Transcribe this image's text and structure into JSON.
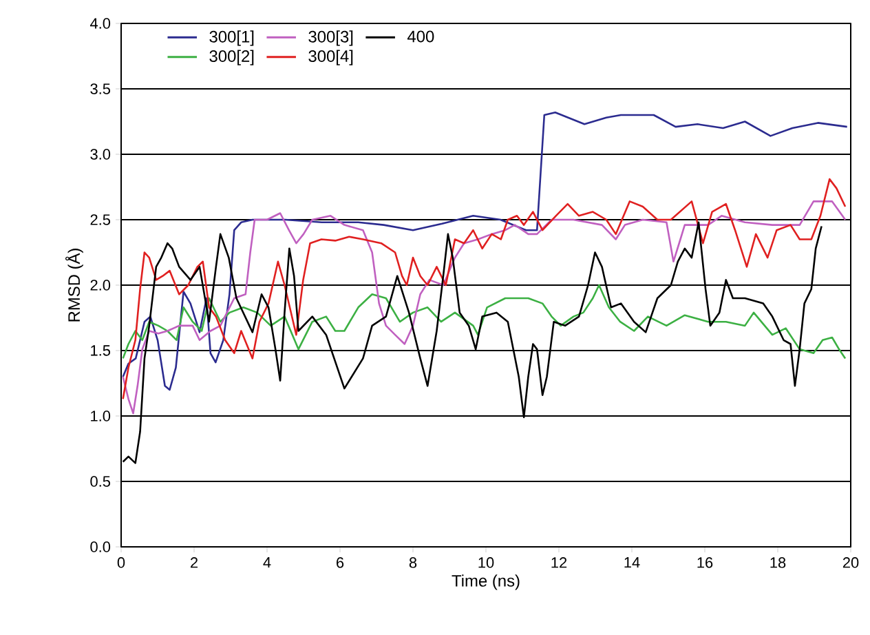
{
  "chart_data": {
    "type": "line",
    "xlabel": "Time (ns)",
    "ylabel": "RMSD (Å)",
    "xlim": [
      0,
      20
    ],
    "ylim": [
      0,
      4
    ],
    "xticks": [
      0,
      2,
      4,
      6,
      8,
      10,
      12,
      14,
      16,
      18,
      20
    ],
    "yticks": [
      {
        "value": 0,
        "label": "0.0"
      },
      {
        "value": 0.5,
        "label": "0.5"
      },
      {
        "value": 1,
        "label": "1.0"
      },
      {
        "value": 1.5,
        "label": "1.5"
      },
      {
        "value": 2,
        "label": "2.0"
      },
      {
        "value": 2.5,
        "label": "2.5"
      },
      {
        "value": 3,
        "label": "3.0"
      },
      {
        "value": 3.5,
        "label": "3.5"
      },
      {
        "value": 4,
        "label": "4.0"
      }
    ],
    "grid": "y",
    "legend": "top left",
    "marker": "none",
    "line_style": "solid",
    "series": [
      {
        "name": "300[1]",
        "color": "#2b2b8f",
        "x": [
          0.05,
          0.2,
          0.4,
          0.64,
          0.8,
          1.0,
          1.2,
          1.33,
          1.5,
          1.71,
          1.9,
          2.15,
          2.34,
          2.45,
          2.59,
          2.8,
          2.97,
          3.1,
          3.29,
          3.6,
          4.5,
          5.5,
          6.5,
          7.2,
          8.0,
          8.8,
          9.65,
          10.4,
          11.1,
          11.4,
          11.6,
          11.9,
          12.7,
          13.3,
          13.7,
          14.6,
          15.2,
          15.8,
          16.5,
          17.1,
          17.8,
          18.4,
          19.1,
          19.9
        ],
        "values": [
          1.3,
          1.4,
          1.44,
          1.72,
          1.76,
          1.58,
          1.23,
          1.2,
          1.37,
          1.95,
          1.86,
          1.64,
          1.9,
          1.48,
          1.41,
          1.58,
          1.93,
          2.42,
          2.48,
          2.5,
          2.5,
          2.48,
          2.48,
          2.46,
          2.42,
          2.47,
          2.53,
          2.5,
          2.42,
          2.42,
          3.3,
          3.32,
          3.23,
          3.28,
          3.3,
          3.3,
          3.21,
          3.23,
          3.2,
          3.25,
          3.14,
          3.2,
          3.24,
          3.21
        ]
      },
      {
        "name": "300[2]",
        "color": "#3cb043",
        "x": [
          0.05,
          0.2,
          0.39,
          0.58,
          0.77,
          1.02,
          1.27,
          1.52,
          1.71,
          1.96,
          2.21,
          2.41,
          2.72,
          2.97,
          3.35,
          3.73,
          4.1,
          4.48,
          4.86,
          5.24,
          5.62,
          5.87,
          6.12,
          6.5,
          6.88,
          7.26,
          7.64,
          8.0,
          8.4,
          8.77,
          9.15,
          9.65,
          9.78,
          10.03,
          10.53,
          11.16,
          11.55,
          11.8,
          12.05,
          12.4,
          12.67,
          12.93,
          13.1,
          13.37,
          13.68,
          14.06,
          14.44,
          14.95,
          15.45,
          16.09,
          16.58,
          17.1,
          17.34,
          17.85,
          18.22,
          18.6,
          18.98,
          19.23,
          19.49,
          19.68,
          19.85
        ],
        "values": [
          1.44,
          1.55,
          1.65,
          1.58,
          1.72,
          1.69,
          1.65,
          1.58,
          1.83,
          1.72,
          1.65,
          1.9,
          1.72,
          1.79,
          1.83,
          1.79,
          1.69,
          1.76,
          1.51,
          1.72,
          1.76,
          1.65,
          1.65,
          1.83,
          1.93,
          1.9,
          1.72,
          1.79,
          1.83,
          1.72,
          1.79,
          1.69,
          1.62,
          1.83,
          1.9,
          1.9,
          1.86,
          1.76,
          1.69,
          1.76,
          1.79,
          1.9,
          2.0,
          1.83,
          1.72,
          1.65,
          1.76,
          1.69,
          1.77,
          1.72,
          1.72,
          1.69,
          1.79,
          1.62,
          1.67,
          1.51,
          1.48,
          1.58,
          1.6,
          1.51,
          1.44
        ]
      },
      {
        "name": "300[3]",
        "color": "#c060c0",
        "x": [
          0.05,
          0.2,
          0.33,
          0.45,
          0.58,
          0.77,
          1.02,
          1.27,
          1.59,
          1.96,
          2.15,
          2.45,
          2.72,
          3.1,
          3.41,
          3.54,
          3.66,
          4.0,
          4.36,
          4.6,
          4.8,
          5.0,
          5.24,
          5.74,
          6.12,
          6.63,
          6.88,
          7.07,
          7.26,
          7.51,
          7.77,
          8.0,
          8.2,
          8.45,
          8.83,
          9.15,
          9.4,
          9.78,
          10.16,
          10.53,
          10.79,
          11.16,
          11.4,
          11.8,
          12.4,
          13.18,
          13.56,
          13.81,
          14.3,
          14.95,
          15.14,
          15.33,
          15.45,
          16.09,
          16.46,
          17.1,
          17.85,
          18.6,
          18.98,
          19.49,
          19.85
        ],
        "values": [
          1.3,
          1.13,
          1.02,
          1.23,
          1.51,
          1.65,
          1.63,
          1.65,
          1.69,
          1.69,
          1.58,
          1.65,
          1.69,
          1.9,
          1.93,
          2.25,
          2.5,
          2.5,
          2.55,
          2.42,
          2.32,
          2.39,
          2.5,
          2.53,
          2.46,
          2.42,
          2.25,
          1.86,
          1.69,
          1.62,
          1.55,
          1.69,
          1.93,
          2.04,
          2.0,
          2.21,
          2.32,
          2.35,
          2.39,
          2.42,
          2.46,
          2.39,
          2.39,
          2.5,
          2.5,
          2.46,
          2.35,
          2.46,
          2.5,
          2.48,
          2.18,
          2.35,
          2.46,
          2.46,
          2.53,
          2.48,
          2.46,
          2.46,
          2.64,
          2.64,
          2.5
        ]
      },
      {
        "name": "300[4]",
        "color": "#e02020",
        "x": [
          0.05,
          0.2,
          0.39,
          0.52,
          0.64,
          0.77,
          0.96,
          1.14,
          1.33,
          1.59,
          1.84,
          2.09,
          2.24,
          2.41,
          2.6,
          2.85,
          3.1,
          3.29,
          3.6,
          3.79,
          4.04,
          4.3,
          4.48,
          4.8,
          4.99,
          5.18,
          5.49,
          5.87,
          6.25,
          6.63,
          7.13,
          7.51,
          7.7,
          7.83,
          8.0,
          8.2,
          8.4,
          8.65,
          8.9,
          9.15,
          9.4,
          9.65,
          9.9,
          10.16,
          10.41,
          10.6,
          10.85,
          11.04,
          11.29,
          11.55,
          11.92,
          12.24,
          12.55,
          12.93,
          13.3,
          13.56,
          13.94,
          14.3,
          14.7,
          15.07,
          15.64,
          15.95,
          16.2,
          16.58,
          16.83,
          17.15,
          17.4,
          17.72,
          17.97,
          18.35,
          18.6,
          18.92,
          19.17,
          19.42,
          19.61,
          19.85
        ],
        "values": [
          1.13,
          1.37,
          1.58,
          1.97,
          2.25,
          2.21,
          2.04,
          2.07,
          2.11,
          1.93,
          2.0,
          2.14,
          2.18,
          1.83,
          1.76,
          1.58,
          1.48,
          1.65,
          1.44,
          1.72,
          1.86,
          2.18,
          2.0,
          1.62,
          2.04,
          2.32,
          2.35,
          2.34,
          2.37,
          2.35,
          2.32,
          2.25,
          2.07,
          2.0,
          2.21,
          2.07,
          2.0,
          2.14,
          2.0,
          2.35,
          2.32,
          2.42,
          2.28,
          2.39,
          2.35,
          2.5,
          2.53,
          2.46,
          2.56,
          2.42,
          2.53,
          2.62,
          2.53,
          2.56,
          2.5,
          2.39,
          2.64,
          2.6,
          2.5,
          2.5,
          2.64,
          2.32,
          2.56,
          2.62,
          2.42,
          2.14,
          2.39,
          2.21,
          2.42,
          2.46,
          2.35,
          2.35,
          2.53,
          2.81,
          2.74,
          2.6
        ]
      },
      {
        "name": "400",
        "color": "#000000",
        "x": [
          0.05,
          0.2,
          0.39,
          0.52,
          0.64,
          0.77,
          0.96,
          1.1,
          1.27,
          1.4,
          1.59,
          1.9,
          2.15,
          2.41,
          2.6,
          2.72,
          2.95,
          3.16,
          3.6,
          3.85,
          4.04,
          4.23,
          4.36,
          4.48,
          4.61,
          4.74,
          4.86,
          5.24,
          5.62,
          6.12,
          6.63,
          6.88,
          7.26,
          7.57,
          7.89,
          8.2,
          8.4,
          8.65,
          8.83,
          8.96,
          9.09,
          9.28,
          9.53,
          9.72,
          9.9,
          10.29,
          10.6,
          10.9,
          11.04,
          11.16,
          11.29,
          11.4,
          11.55,
          11.67,
          11.86,
          12.17,
          12.55,
          12.8,
          12.99,
          13.18,
          13.43,
          13.7,
          14.06,
          14.38,
          14.7,
          15.07,
          15.26,
          15.45,
          15.64,
          15.83,
          16.02,
          16.15,
          16.4,
          16.58,
          16.77,
          17.1,
          17.6,
          17.85,
          18.16,
          18.35,
          18.47,
          18.6,
          18.73,
          18.92,
          19.04,
          19.2
        ],
        "values": [
          0.65,
          0.69,
          0.64,
          0.88,
          1.44,
          1.69,
          2.14,
          2.21,
          2.32,
          2.28,
          2.14,
          2.04,
          2.14,
          1.72,
          2.14,
          2.39,
          2.21,
          1.9,
          1.64,
          1.93,
          1.83,
          1.51,
          1.27,
          1.79,
          2.28,
          2.07,
          1.65,
          1.76,
          1.62,
          1.21,
          1.44,
          1.69,
          1.76,
          2.07,
          1.79,
          1.44,
          1.23,
          1.65,
          2.07,
          2.39,
          2.21,
          1.79,
          1.69,
          1.51,
          1.76,
          1.79,
          1.72,
          1.3,
          0.99,
          1.3,
          1.55,
          1.51,
          1.16,
          1.3,
          1.72,
          1.69,
          1.76,
          2.0,
          2.25,
          2.14,
          1.83,
          1.86,
          1.72,
          1.64,
          1.9,
          2.0,
          2.18,
          2.28,
          2.21,
          2.48,
          1.97,
          1.69,
          1.79,
          2.04,
          1.9,
          1.9,
          1.86,
          1.76,
          1.58,
          1.55,
          1.23,
          1.51,
          1.86,
          1.97,
          2.28,
          2.45
        ]
      }
    ]
  }
}
